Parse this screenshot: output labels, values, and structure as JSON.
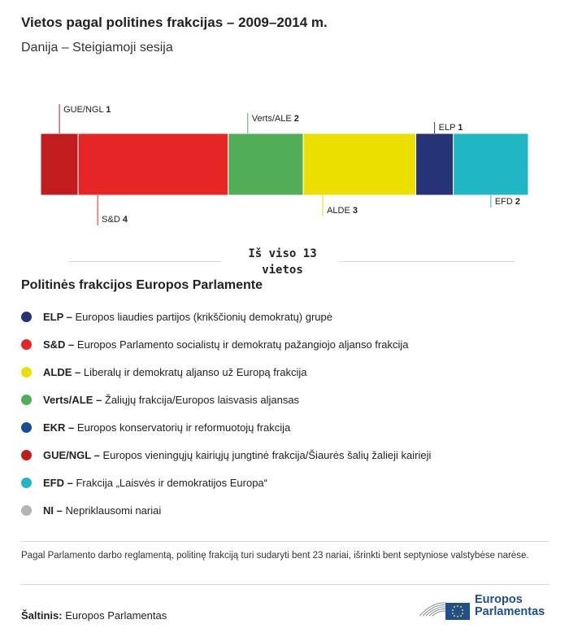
{
  "title": "Vietos pagal politines frakcijas – 2009–2014 m.",
  "subtitle": "Danija – Steigiamoji sesija",
  "total_line1": "Iš viso 13",
  "total_line2": "vietos",
  "legend_title": "Politinės frakcijos Europos Parlamente",
  "legend": [
    {
      "abbr": "ELP –",
      "desc": "Europos liaudies partijos (krikščionių demokratų) grupė",
      "color": "#263477"
    },
    {
      "abbr": "S&D –",
      "desc": "Europos Parlamento socialistų ir demokratų pažangiojo aljanso frakcija",
      "color": "#e52624"
    },
    {
      "abbr": "ALDE –",
      "desc": "Liberalų ir demokratų aljanso už Europą frakcija",
      "color": "#ebdf00"
    },
    {
      "abbr": "Verts/ALE –",
      "desc": "Žaliųjų frakcija/Europos laisvasis aljansas",
      "color": "#52ae56"
    },
    {
      "abbr": "EKR –",
      "desc": "Europos konservatorių ir reformuotojų frakcija",
      "color": "#164e96"
    },
    {
      "abbr": "GUE/NGL –",
      "desc": "Europos vieningųjų kairiųjų jungtinė frakcija/Šiaurės šalių žalieji kairieji",
      "color": "#c11d1f"
    },
    {
      "abbr": "EFD –",
      "desc": "Frakcija „Laisvės ir demokratijos Europa“",
      "color": "#21b6c3"
    },
    {
      "abbr": "NI –",
      "desc": "Nepriklausomi nariai",
      "color": "#b4b4b4"
    }
  ],
  "footnote": "Pagal Parlamento darbo reglamentą, politinę frakciją turi sudaryti bent 23 nariai, išrinkti bent septyniose valstybėse narėse.",
  "source_label": "Šaltinis:",
  "source_value": "Europos Parlamentas",
  "logo_line1": "Europos",
  "logo_line2": "Parlamentas",
  "chart_data": {
    "type": "bar",
    "orientation": "horizontal-stacked",
    "total": 13,
    "series": [
      {
        "name": "GUE/NGL",
        "value": 1,
        "color": "#c11d1f",
        "label_side": "top"
      },
      {
        "name": "S&D",
        "value": 4,
        "color": "#e52624",
        "label_side": "bottom"
      },
      {
        "name": "Verts/ALE",
        "value": 2,
        "color": "#52ae56",
        "label_side": "top"
      },
      {
        "name": "ALDE",
        "value": 3,
        "color": "#ebdf00",
        "label_side": "bottom"
      },
      {
        "name": "ELP",
        "value": 1,
        "color": "#263477",
        "label_side": "top"
      },
      {
        "name": "EFD",
        "value": 2,
        "color": "#21b6c3",
        "label_side": "bottom"
      }
    ]
  }
}
